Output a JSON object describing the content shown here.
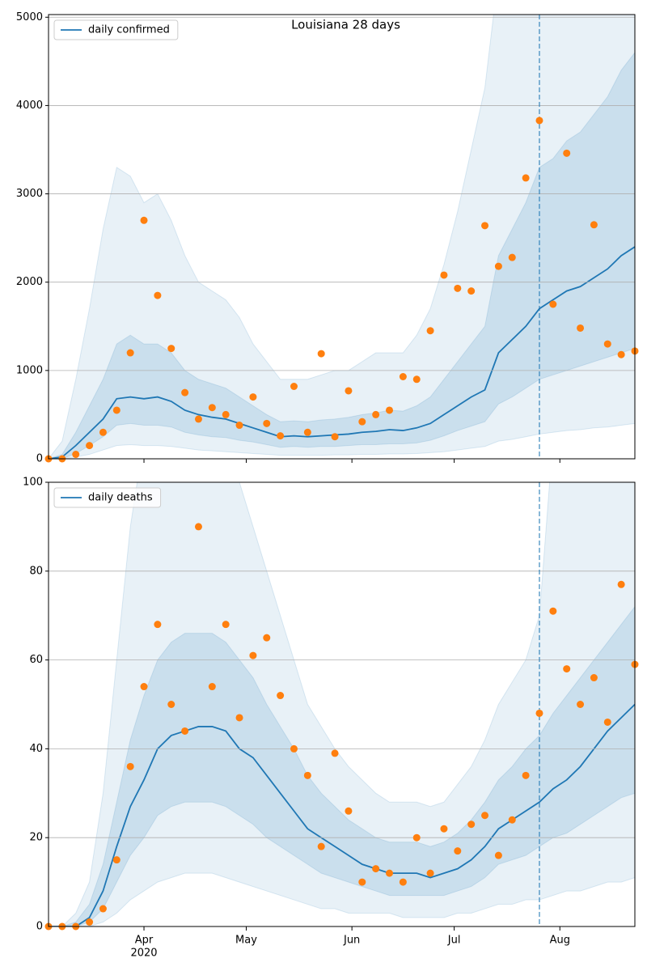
{
  "chart_data": [
    {
      "type": "line",
      "title": "Louisiana 28 days",
      "legend": "upper left",
      "grid": true,
      "x": [
        64,
        68,
        72,
        76,
        80,
        84,
        88,
        92,
        96,
        100,
        104,
        108,
        112,
        116,
        120,
        124,
        128,
        132,
        136,
        140,
        144,
        148,
        152,
        156,
        160,
        164,
        168,
        172,
        176,
        180,
        184,
        188,
        192,
        196,
        200,
        204,
        208,
        212,
        216,
        220,
        224,
        228,
        232,
        236
      ],
      "xlim": [
        64,
        236
      ],
      "xticks": [
        92,
        122,
        153,
        183,
        214
      ],
      "ylim": [
        0,
        5030
      ],
      "yticks": [
        0,
        1000,
        2000,
        3000,
        4000,
        5000
      ],
      "vline": {
        "x": 208,
        "color": "#1f77b4"
      },
      "bands": [
        {
          "color": "#1f77b4",
          "opacity": 0.1,
          "lower": [
            0,
            0,
            20,
            50,
            100,
            150,
            160,
            150,
            150,
            140,
            120,
            100,
            90,
            80,
            70,
            60,
            50,
            40,
            40,
            40,
            40,
            45,
            45,
            50,
            50,
            55,
            55,
            60,
            70,
            80,
            100,
            120,
            140,
            200,
            220,
            250,
            280,
            300,
            320,
            330,
            350,
            360,
            380,
            400
          ],
          "upper": [
            0,
            200,
            900,
            1700,
            2600,
            3300,
            3200,
            2900,
            3000,
            2700,
            2300,
            2000,
            1900,
            1800,
            1600,
            1300,
            1100,
            900,
            900,
            900,
            950,
            1000,
            1000,
            1100,
            1200,
            1200,
            1200,
            1400,
            1700,
            2200,
            2800,
            3500,
            4200,
            5500,
            6000,
            6500,
            7000,
            7000,
            7000,
            7000,
            7000,
            7000,
            7000,
            7000
          ]
        },
        {
          "color": "#1f77b4",
          "opacity": 0.15,
          "lower": [
            0,
            0,
            60,
            150,
            250,
            380,
            400,
            380,
            380,
            360,
            300,
            270,
            250,
            240,
            210,
            190,
            160,
            130,
            140,
            130,
            140,
            140,
            150,
            160,
            160,
            170,
            170,
            180,
            210,
            260,
            320,
            370,
            420,
            620,
            700,
            800,
            900,
            950,
            1000,
            1050,
            1100,
            1150,
            1200,
            1250
          ],
          "upper": [
            0,
            50,
            300,
            600,
            900,
            1300,
            1400,
            1300,
            1300,
            1200,
            1000,
            900,
            850,
            800,
            700,
            600,
            500,
            420,
            430,
            420,
            440,
            450,
            470,
            500,
            520,
            550,
            540,
            600,
            700,
            900,
            1100,
            1300,
            1500,
            2300,
            2600,
            2900,
            3300,
            3400,
            3600,
            3700,
            3900,
            4100,
            4400,
            4600
          ]
        }
      ],
      "series": [
        {
          "name": "daily confirmed",
          "style": "line",
          "color": "#1f77b4",
          "values": [
            0,
            20,
            150,
            300,
            450,
            680,
            700,
            680,
            700,
            650,
            550,
            500,
            470,
            450,
            400,
            350,
            300,
            250,
            260,
            250,
            260,
            270,
            280,
            300,
            310,
            330,
            320,
            350,
            400,
            500,
            600,
            700,
            780,
            1200,
            1350,
            1500,
            1700,
            1800,
            1900,
            1950,
            2050,
            2150,
            2300,
            2400
          ]
        },
        {
          "style": "scatter",
          "color": "#ff7f0e",
          "values": [
            0,
            0,
            50,
            150,
            300,
            550,
            1200,
            2700,
            1850,
            1250,
            750,
            450,
            580,
            500,
            380,
            700,
            400,
            260,
            820,
            300,
            1190,
            250,
            770,
            420,
            500,
            550,
            930,
            900,
            1450,
            2080,
            1930,
            1900,
            2640,
            2180,
            2280,
            3180,
            3830,
            1750,
            3460,
            1480,
            2650,
            1300,
            1180,
            1220
          ]
        }
      ]
    },
    {
      "type": "line",
      "legend": "upper left",
      "grid": true,
      "x": [
        64,
        68,
        72,
        76,
        80,
        84,
        88,
        92,
        96,
        100,
        104,
        108,
        112,
        116,
        120,
        124,
        128,
        132,
        136,
        140,
        144,
        148,
        152,
        156,
        160,
        164,
        168,
        172,
        176,
        180,
        184,
        188,
        192,
        196,
        200,
        204,
        208,
        212,
        216,
        220,
        224,
        228,
        232,
        236
      ],
      "xlim": [
        64,
        236
      ],
      "xticks": [
        {
          "value": 92,
          "label": "Apr"
        },
        {
          "value": 122,
          "label": "May"
        },
        {
          "value": 153,
          "label": "Jun"
        },
        {
          "value": 183,
          "label": "Jul"
        },
        {
          "value": 214,
          "label": "Aug"
        }
      ],
      "x_sublabel": "2020",
      "ylim": [
        0,
        100
      ],
      "yticks": [
        0,
        20,
        40,
        60,
        80,
        100
      ],
      "vline": {
        "x": 208,
        "color": "#1f77b4"
      },
      "bands": [
        {
          "color": "#1f77b4",
          "opacity": 0.1,
          "lower": [
            0,
            0,
            0,
            0,
            1,
            3,
            6,
            8,
            10,
            11,
            12,
            12,
            12,
            11,
            10,
            9,
            8,
            7,
            6,
            5,
            4,
            4,
            3,
            3,
            3,
            3,
            2,
            2,
            2,
            2,
            3,
            3,
            4,
            5,
            5,
            6,
            6,
            7,
            8,
            8,
            9,
            10,
            10,
            11
          ],
          "upper": [
            0,
            0,
            3,
            10,
            30,
            60,
            90,
            110,
            120,
            120,
            120,
            120,
            115,
            110,
            100,
            90,
            80,
            70,
            60,
            50,
            45,
            40,
            36,
            33,
            30,
            28,
            28,
            28,
            27,
            28,
            32,
            36,
            42,
            50,
            55,
            60,
            70,
            110,
            120,
            120,
            120,
            120,
            120,
            120
          ]
        },
        {
          "color": "#1f77b4",
          "opacity": 0.15,
          "lower": [
            0,
            0,
            0,
            1,
            4,
            10,
            16,
            20,
            25,
            27,
            28,
            28,
            28,
            27,
            25,
            23,
            20,
            18,
            16,
            14,
            12,
            11,
            10,
            9,
            8,
            7,
            7,
            7,
            7,
            7,
            8,
            9,
            11,
            14,
            15,
            16,
            18,
            20,
            21,
            23,
            25,
            27,
            29,
            30
          ],
          "upper": [
            0,
            0,
            1,
            5,
            14,
            28,
            42,
            52,
            60,
            64,
            66,
            66,
            66,
            64,
            60,
            56,
            50,
            45,
            40,
            34,
            30,
            27,
            24,
            22,
            20,
            19,
            19,
            19,
            18,
            19,
            21,
            24,
            28,
            33,
            36,
            40,
            43,
            48,
            52,
            56,
            60,
            64,
            68,
            72
          ]
        }
      ],
      "series": [
        {
          "name": "daily deaths",
          "style": "line",
          "color": "#1f77b4",
          "values": [
            0,
            0,
            0,
            2,
            8,
            18,
            27,
            33,
            40,
            43,
            44,
            45,
            45,
            44,
            40,
            38,
            34,
            30,
            26,
            22,
            20,
            18,
            16,
            14,
            13,
            12,
            12,
            12,
            11,
            12,
            13,
            15,
            18,
            22,
            24,
            26,
            28,
            31,
            33,
            36,
            40,
            44,
            47,
            50
          ]
        },
        {
          "style": "scatter",
          "color": "#ff7f0e",
          "values": [
            0,
            0,
            0,
            1,
            4,
            15,
            36,
            54,
            68,
            50,
            44,
            90,
            54,
            68,
            47,
            61,
            65,
            52,
            40,
            34,
            18,
            39,
            26,
            10,
            13,
            12,
            10,
            20,
            12,
            22,
            17,
            23,
            25,
            16,
            24,
            34,
            48,
            71,
            58,
            50,
            56,
            46,
            77,
            59
          ]
        }
      ]
    }
  ]
}
